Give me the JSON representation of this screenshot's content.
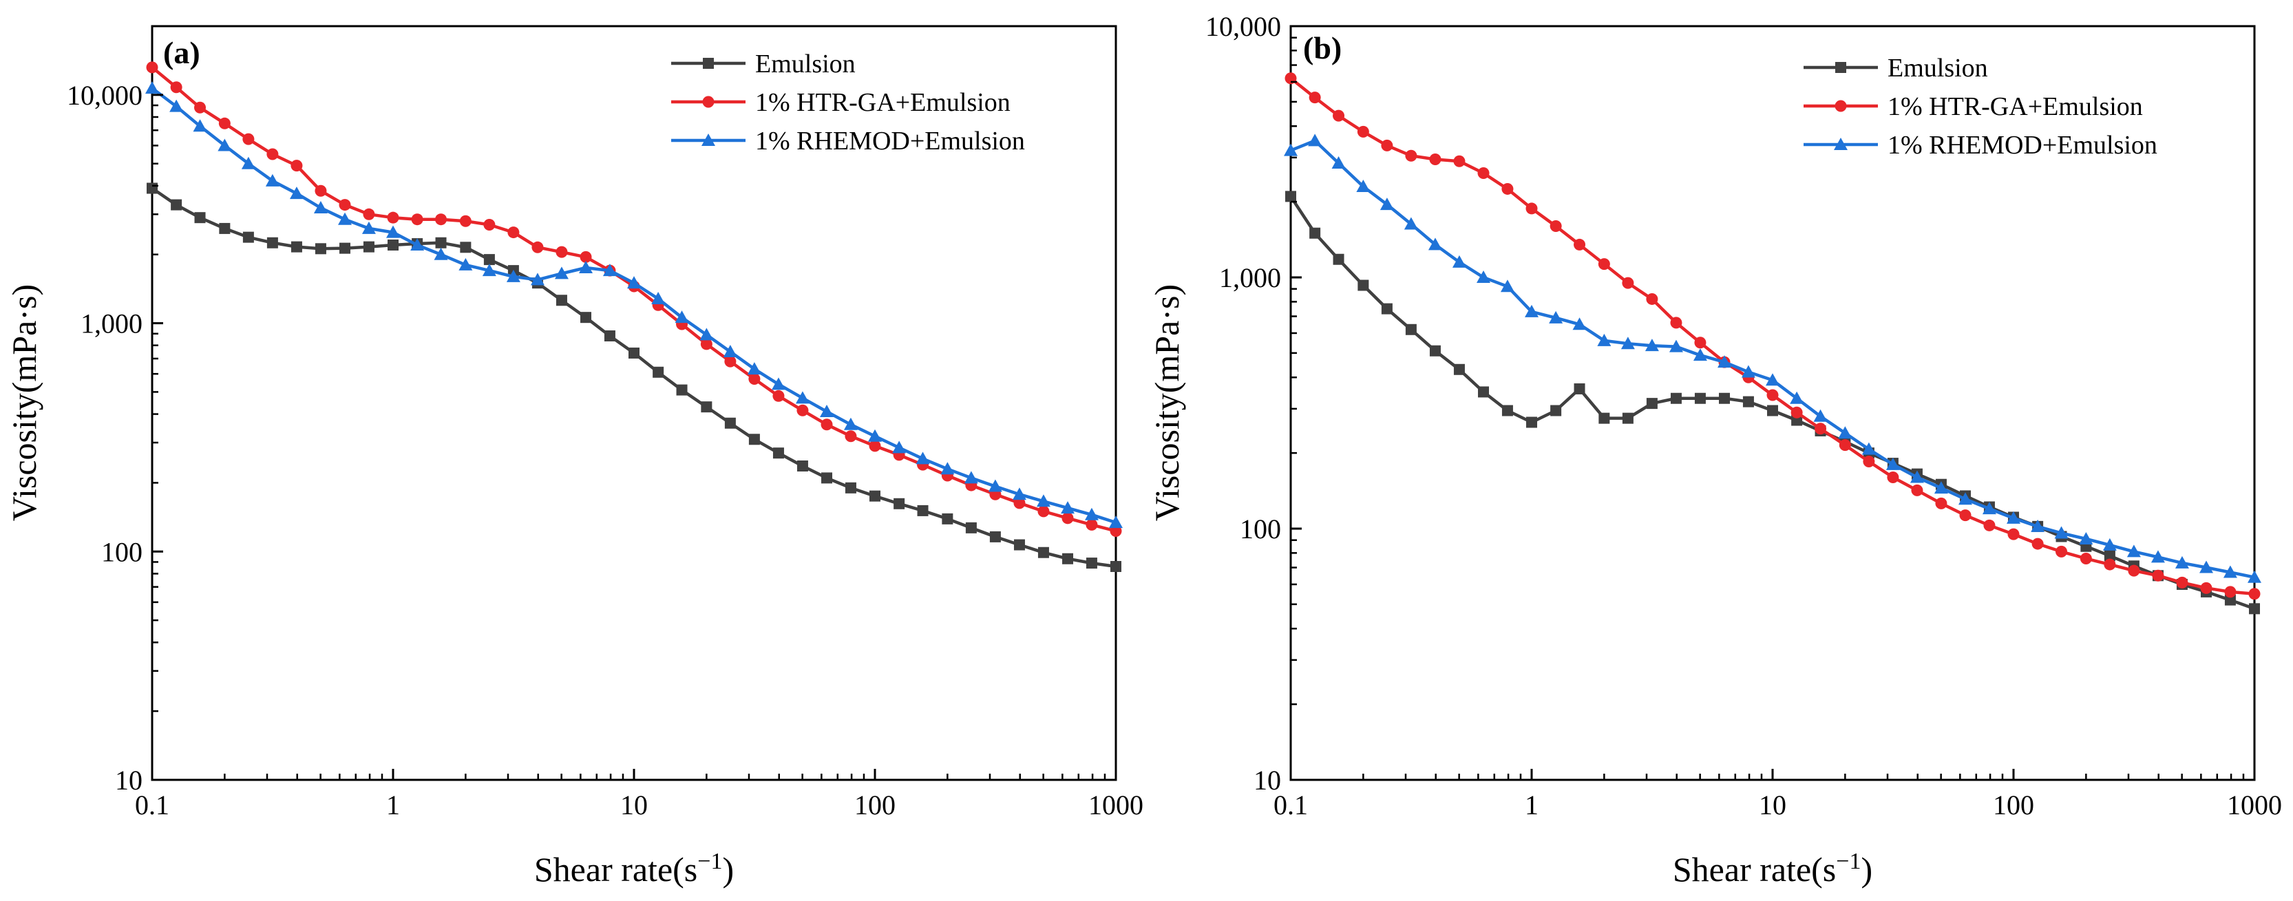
{
  "chart_data": [
    {
      "type": "line",
      "panel_label": "(a)",
      "xscale": "log",
      "yscale": "log",
      "xlabel": "Shear rate(s",
      "xlabel_sup": "−1",
      "xlabel_end": ")",
      "ylabel": "Viscosity(mPa·s)",
      "xlim": [
        0.1,
        1000
      ],
      "ylim": [
        10,
        20000
      ],
      "x_ticks": [
        0.1,
        1,
        10,
        100,
        1000
      ],
      "x_tick_labels": [
        "0.1",
        "1",
        "10",
        "100",
        "1000"
      ],
      "y_ticks": [
        10,
        100,
        1000,
        10000
      ],
      "y_tick_labels": [
        "10",
        "100",
        "1,000",
        "10,000"
      ],
      "legend_position": "top-right",
      "series": [
        {
          "name": "Emulsion",
          "color": "#404040",
          "marker": "square",
          "x": [
            0.1,
            0.126,
            0.158,
            0.2,
            0.251,
            0.316,
            0.398,
            0.501,
            0.631,
            0.794,
            1.0,
            1.26,
            1.58,
            2.0,
            2.51,
            3.16,
            3.98,
            5.01,
            6.31,
            7.94,
            10.0,
            12.6,
            15.8,
            20.0,
            25.1,
            31.6,
            39.8,
            50.1,
            63.1,
            79.4,
            100,
            126,
            158,
            200,
            251,
            316,
            398,
            501,
            631,
            794,
            1000
          ],
          "y": [
            3900,
            3300,
            2900,
            2600,
            2380,
            2250,
            2160,
            2120,
            2130,
            2160,
            2200,
            2230,
            2250,
            2150,
            1900,
            1700,
            1500,
            1260,
            1060,
            880,
            740,
            610,
            510,
            430,
            365,
            310,
            270,
            237,
            210,
            190,
            175,
            162,
            151,
            139,
            127,
            116,
            107,
            99,
            93,
            89,
            86
          ]
        },
        {
          "name": "1% HTR-GA+Emulsion",
          "color": "#e8262a",
          "marker": "circle",
          "x": [
            0.1,
            0.126,
            0.158,
            0.2,
            0.251,
            0.316,
            0.398,
            0.501,
            0.631,
            0.794,
            1.0,
            1.26,
            1.58,
            2.0,
            2.51,
            3.16,
            3.98,
            5.01,
            6.31,
            7.94,
            10.0,
            12.6,
            15.8,
            20.0,
            25.1,
            31.6,
            39.8,
            50.1,
            63.1,
            79.4,
            100,
            126,
            158,
            200,
            251,
            316,
            398,
            501,
            631,
            794,
            1000
          ],
          "y": [
            13200,
            10800,
            8800,
            7500,
            6400,
            5500,
            4900,
            3800,
            3300,
            3000,
            2900,
            2850,
            2850,
            2800,
            2700,
            2500,
            2150,
            2050,
            1950,
            1700,
            1450,
            1200,
            990,
            810,
            680,
            570,
            480,
            415,
            360,
            320,
            290,
            265,
            240,
            215,
            195,
            178,
            163,
            150,
            140,
            131,
            123
          ]
        },
        {
          "name": "1% RHEMOD+Emulsion",
          "color": "#1f73d8",
          "marker": "triangle",
          "x": [
            0.1,
            0.126,
            0.158,
            0.2,
            0.251,
            0.316,
            0.398,
            0.501,
            0.631,
            0.794,
            1.0,
            1.26,
            1.58,
            2.0,
            2.51,
            3.16,
            3.98,
            5.01,
            6.31,
            7.94,
            10.0,
            12.6,
            15.8,
            20.0,
            25.1,
            31.6,
            39.8,
            50.1,
            63.1,
            79.4,
            100,
            126,
            158,
            200,
            251,
            316,
            398,
            501,
            631,
            794,
            1000
          ],
          "y": [
            10700,
            8900,
            7300,
            6000,
            5000,
            4200,
            3700,
            3200,
            2850,
            2600,
            2500,
            2200,
            2000,
            1800,
            1700,
            1600,
            1550,
            1650,
            1750,
            1700,
            1500,
            1280,
            1060,
            890,
            750,
            630,
            540,
            470,
            410,
            360,
            320,
            285,
            255,
            230,
            210,
            193,
            178,
            166,
            155,
            145,
            134
          ]
        }
      ]
    },
    {
      "type": "line",
      "panel_label": "(b)",
      "xscale": "log",
      "yscale": "log",
      "xlabel": "Shear rate(s",
      "xlabel_sup": "−1",
      "xlabel_end": ")",
      "ylabel": "Viscosity(mPa·s)",
      "xlim": [
        0.1,
        1000
      ],
      "ylim": [
        10,
        10000
      ],
      "x_ticks": [
        0.1,
        1,
        10,
        100,
        1000
      ],
      "x_tick_labels": [
        "0.1",
        "1",
        "10",
        "100",
        "1000"
      ],
      "y_ticks": [
        10,
        100,
        1000,
        10000
      ],
      "y_tick_labels": [
        "10",
        "100",
        "1,000",
        "10,000"
      ],
      "legend_position": "top-right",
      "series": [
        {
          "name": "Emulsion",
          "color": "#404040",
          "marker": "square",
          "x": [
            0.1,
            0.126,
            0.158,
            0.2,
            0.251,
            0.316,
            0.398,
            0.501,
            0.631,
            0.794,
            1.0,
            1.26,
            1.58,
            2.0,
            2.51,
            3.16,
            3.98,
            5.01,
            6.31,
            7.94,
            10.0,
            12.6,
            15.8,
            20.0,
            25.1,
            31.6,
            39.8,
            50.1,
            63.1,
            79.4,
            100,
            126,
            158,
            200,
            251,
            316,
            398,
            501,
            631,
            794,
            1000
          ],
          "y": [
            2100,
            1500,
            1180,
            930,
            750,
            620,
            510,
            430,
            350,
            295,
            265,
            295,
            360,
            275,
            275,
            315,
            330,
            330,
            330,
            320,
            295,
            270,
            245,
            222,
            200,
            182,
            165,
            150,
            135,
            122,
            111,
            102,
            93,
            85,
            78,
            71,
            65,
            60,
            56,
            52,
            48
          ]
        },
        {
          "name": "1% HTR-GA+Emulsion",
          "color": "#e8262a",
          "marker": "circle",
          "x": [
            0.1,
            0.126,
            0.158,
            0.2,
            0.251,
            0.316,
            0.398,
            0.501,
            0.631,
            0.794,
            1.0,
            1.26,
            1.58,
            2.0,
            2.51,
            3.16,
            3.98,
            5.01,
            6.31,
            7.94,
            10.0,
            12.6,
            15.8,
            20.0,
            25.1,
            31.6,
            39.8,
            50.1,
            63.1,
            79.4,
            100,
            126,
            158,
            200,
            251,
            316,
            398,
            501,
            631,
            794,
            1000
          ],
          "y": [
            6200,
            5200,
            4400,
            3800,
            3350,
            3050,
            2950,
            2900,
            2600,
            2250,
            1880,
            1600,
            1350,
            1130,
            950,
            820,
            660,
            550,
            460,
            400,
            340,
            290,
            250,
            215,
            185,
            160,
            142,
            126,
            113,
            103,
            95,
            87,
            81,
            76,
            72,
            68,
            65,
            61,
            58,
            56,
            55
          ]
        },
        {
          "name": "1% RHEMOD+Emulsion",
          "color": "#1f73d8",
          "marker": "triangle",
          "x": [
            0.1,
            0.126,
            0.158,
            0.2,
            0.251,
            0.316,
            0.398,
            0.501,
            0.631,
            0.794,
            1.0,
            1.26,
            1.58,
            2.0,
            2.51,
            3.16,
            3.98,
            5.01,
            6.31,
            7.94,
            10.0,
            12.6,
            15.8,
            20.0,
            25.1,
            31.6,
            39.8,
            50.1,
            63.1,
            79.4,
            100,
            126,
            158,
            200,
            251,
            316,
            398,
            501,
            631,
            794,
            1000
          ],
          "y": [
            3200,
            3500,
            2850,
            2300,
            1950,
            1630,
            1350,
            1150,
            1000,
            920,
            730,
            690,
            650,
            560,
            545,
            535,
            530,
            490,
            460,
            420,
            390,
            330,
            280,
            240,
            207,
            180,
            160,
            145,
            131,
            120,
            110,
            102,
            96,
            91,
            86,
            81,
            77,
            73,
            70,
            67,
            64
          ]
        }
      ]
    }
  ]
}
